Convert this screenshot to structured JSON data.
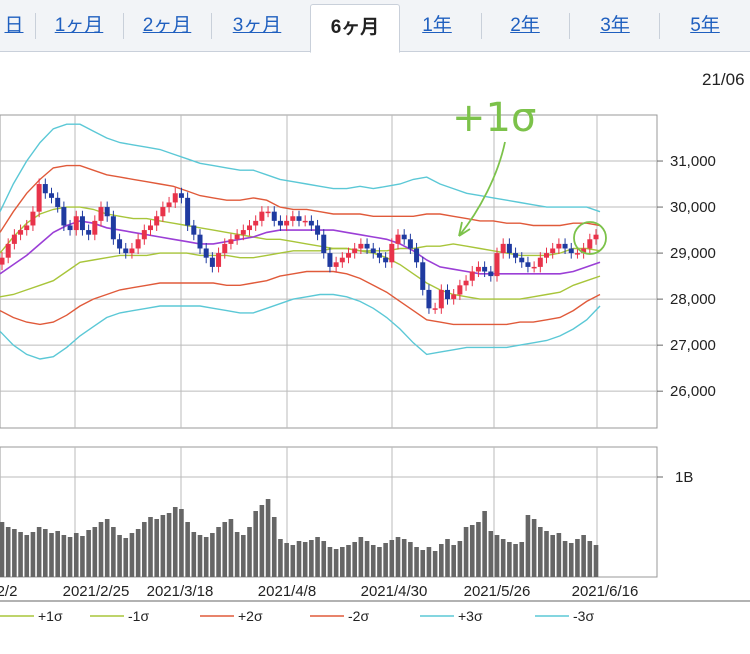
{
  "tabs": [
    {
      "label": "日",
      "active": false
    },
    {
      "label": "1ヶ月",
      "active": false
    },
    {
      "label": "2ヶ月",
      "active": false
    },
    {
      "label": "3ヶ月",
      "active": false
    },
    {
      "label": "6ヶ月",
      "active": true
    },
    {
      "label": "1年",
      "active": false
    },
    {
      "label": "2年",
      "active": false
    },
    {
      "label": "3年",
      "active": false
    },
    {
      "label": "5年",
      "active": false
    }
  ],
  "date_label": "21/06",
  "annotation": "+1σ",
  "chart_data": {
    "type": "candlestick",
    "price_axis": {
      "ticks": [
        "31,000",
        "30,000",
        "29,000",
        "28,000",
        "27,000",
        "26,000"
      ],
      "values": [
        31000,
        30000,
        29000,
        28000,
        27000,
        26000
      ],
      "ylim": [
        25200,
        32000
      ]
    },
    "volume_axis": {
      "ticks": [
        "1B"
      ],
      "values": [
        1.0
      ],
      "ylim": [
        0,
        1.3
      ],
      "unit": "B"
    },
    "x_ticks": [
      "2/2",
      "2021/2/25",
      "2021/3/18",
      "2021/4/8",
      "2021/4/30",
      "2021/5/26",
      "2021/6/16"
    ],
    "close": [
      28900,
      29200,
      29400,
      29500,
      29600,
      29900,
      30500,
      30300,
      30200,
      30000,
      29600,
      29500,
      29800,
      29500,
      29400,
      29700,
      30000,
      29800,
      29300,
      29100,
      29000,
      29100,
      29300,
      29500,
      29600,
      29800,
      30000,
      30100,
      30300,
      30200,
      29600,
      29400,
      29100,
      28900,
      28700,
      29000,
      29200,
      29300,
      29400,
      29500,
      29600,
      29700,
      29900,
      29900,
      29700,
      29600,
      29700,
      29800,
      29700,
      29700,
      29600,
      29400,
      29000,
      28700,
      28800,
      28900,
      29000,
      29100,
      29200,
      29100,
      29000,
      28900,
      28800,
      29200,
      29400,
      29300,
      29100,
      28800,
      28200,
      27800,
      27800,
      28200,
      28000,
      28100,
      28300,
      28400,
      28600,
      28700,
      28600,
      28500,
      29000,
      29200,
      29000,
      28900,
      28800,
      28700,
      28700,
      28900,
      29000,
      29100,
      29200,
      29100,
      29000,
      29000,
      29100,
      29300,
      29400
    ],
    "volume": [
      0.55,
      0.5,
      0.48,
      0.45,
      0.42,
      0.45,
      0.5,
      0.48,
      0.44,
      0.46,
      0.42,
      0.4,
      0.44,
      0.41,
      0.47,
      0.5,
      0.55,
      0.58,
      0.5,
      0.42,
      0.39,
      0.44,
      0.48,
      0.55,
      0.6,
      0.58,
      0.62,
      0.64,
      0.7,
      0.68,
      0.55,
      0.45,
      0.42,
      0.4,
      0.44,
      0.5,
      0.55,
      0.58,
      0.45,
      0.42,
      0.5,
      0.66,
      0.72,
      0.78,
      0.6,
      0.38,
      0.34,
      0.32,
      0.36,
      0.35,
      0.37,
      0.4,
      0.36,
      0.3,
      0.28,
      0.3,
      0.32,
      0.35,
      0.4,
      0.36,
      0.32,
      0.3,
      0.34,
      0.37,
      0.4,
      0.38,
      0.35,
      0.3,
      0.27,
      0.3,
      0.26,
      0.33,
      0.38,
      0.32,
      0.36,
      0.5,
      0.52,
      0.55,
      0.66,
      0.46,
      0.42,
      0.38,
      0.35,
      0.33,
      0.35,
      0.62,
      0.58,
      0.5,
      0.46,
      0.42,
      0.44,
      0.36,
      0.34,
      0.38,
      0.42,
      0.36,
      0.32
    ],
    "bands": [
      {
        "name": "+1σ",
        "color": "#a8c53a",
        "values": [
          29000,
          29350,
          29650,
          29850,
          29950,
          30000,
          30000,
          29950,
          29850,
          29800,
          29750,
          29750,
          29700,
          29650,
          29600,
          29550,
          29500,
          29450,
          29400,
          29350,
          29300,
          29300,
          29250,
          29200,
          29150,
          29100,
          29100,
          29050,
          29050,
          29050,
          29100,
          29100,
          29150,
          29150,
          29200,
          29150,
          29100,
          29050,
          29000,
          28950,
          28950,
          28950,
          29000,
          29100,
          29100,
          29050
        ]
      },
      {
        "name": "-1σ",
        "color": "#a8c53a",
        "values": [
          28050,
          28100,
          28200,
          28300,
          28400,
          28600,
          28800,
          28850,
          28900,
          28950,
          28950,
          28950,
          29000,
          29000,
          29000,
          28950,
          28950,
          28950,
          28900,
          28900,
          28950,
          29000,
          29050,
          29050,
          29050,
          29100,
          29100,
          29050,
          29000,
          28900,
          28750,
          28550,
          28350,
          28200,
          28100,
          28050,
          28000,
          28000,
          28000,
          28000,
          28050,
          28100,
          28150,
          28300,
          28400,
          28500
        ]
      },
      {
        "name": "+2σ",
        "color": "#e05a3a",
        "values": [
          29450,
          29900,
          30300,
          30600,
          30850,
          30900,
          30900,
          30800,
          30700,
          30650,
          30600,
          30550,
          30500,
          30450,
          30350,
          30250,
          30200,
          30150,
          30150,
          30200,
          30150,
          30000,
          29950,
          29950,
          29900,
          29850,
          29850,
          29850,
          29800,
          29800,
          29800,
          29800,
          29850,
          29850,
          29800,
          29750,
          29700,
          29700,
          29650,
          29650,
          29600,
          29600,
          29600,
          29650,
          29650,
          29600
        ]
      },
      {
        "name": "-2σ",
        "color": "#e05a3a",
        "values": [
          27750,
          27600,
          27500,
          27450,
          27500,
          27650,
          27850,
          28000,
          28100,
          28200,
          28250,
          28300,
          28350,
          28350,
          28350,
          28350,
          28350,
          28300,
          28300,
          28350,
          28400,
          28500,
          28550,
          28600,
          28600,
          28600,
          28550,
          28450,
          28300,
          28150,
          27950,
          27750,
          27550,
          27500,
          27450,
          27450,
          27450,
          27450,
          27450,
          27500,
          27500,
          27550,
          27600,
          27750,
          27950,
          28100
        ]
      },
      {
        "name": "+3σ",
        "color": "#5bc8d6",
        "values": [
          29900,
          30500,
          31000,
          31400,
          31700,
          31800,
          31800,
          31650,
          31500,
          31400,
          31350,
          31300,
          31250,
          31150,
          31050,
          30950,
          30900,
          30850,
          30800,
          30800,
          30700,
          30600,
          30550,
          30500,
          30450,
          30400,
          30400,
          30450,
          30400,
          30450,
          30500,
          30600,
          30650,
          30500,
          30400,
          30300,
          30250,
          30200,
          30150,
          30100,
          30050,
          30000,
          30000,
          30000,
          30000,
          29900
        ]
      },
      {
        "name": "-3σ",
        "color": "#5bc8d6",
        "values": [
          27300,
          27000,
          26800,
          26700,
          26750,
          26950,
          27200,
          27400,
          27600,
          27700,
          27750,
          27800,
          27850,
          27850,
          27850,
          27850,
          27800,
          27750,
          27700,
          27700,
          27800,
          27900,
          28000,
          28050,
          28100,
          28100,
          28050,
          27950,
          27800,
          27600,
          27350,
          27050,
          26800,
          26850,
          26900,
          26950,
          26950,
          26950,
          26950,
          27000,
          27050,
          27100,
          27200,
          27350,
          27550,
          27850
        ]
      }
    ],
    "moving_average": {
      "color": "#9b3fd6",
      "values": [
        28550,
        28750,
        28950,
        29200,
        29450,
        29600,
        29700,
        29650,
        29550,
        29500,
        29450,
        29400,
        29350,
        29300,
        29250,
        29200,
        29200,
        29250,
        29300,
        29350,
        29450,
        29500,
        29500,
        29500,
        29500,
        29500,
        29450,
        29400,
        29350,
        29300,
        29200,
        29050,
        28850,
        28700,
        28650,
        28600,
        28550,
        28550,
        28550,
        28550,
        28550,
        28550,
        28550,
        28600,
        28700,
        28800
      ]
    },
    "legend": [
      "+1σ",
      "-1σ",
      "+2σ",
      "-2σ",
      "+3σ",
      "-3σ"
    ]
  }
}
